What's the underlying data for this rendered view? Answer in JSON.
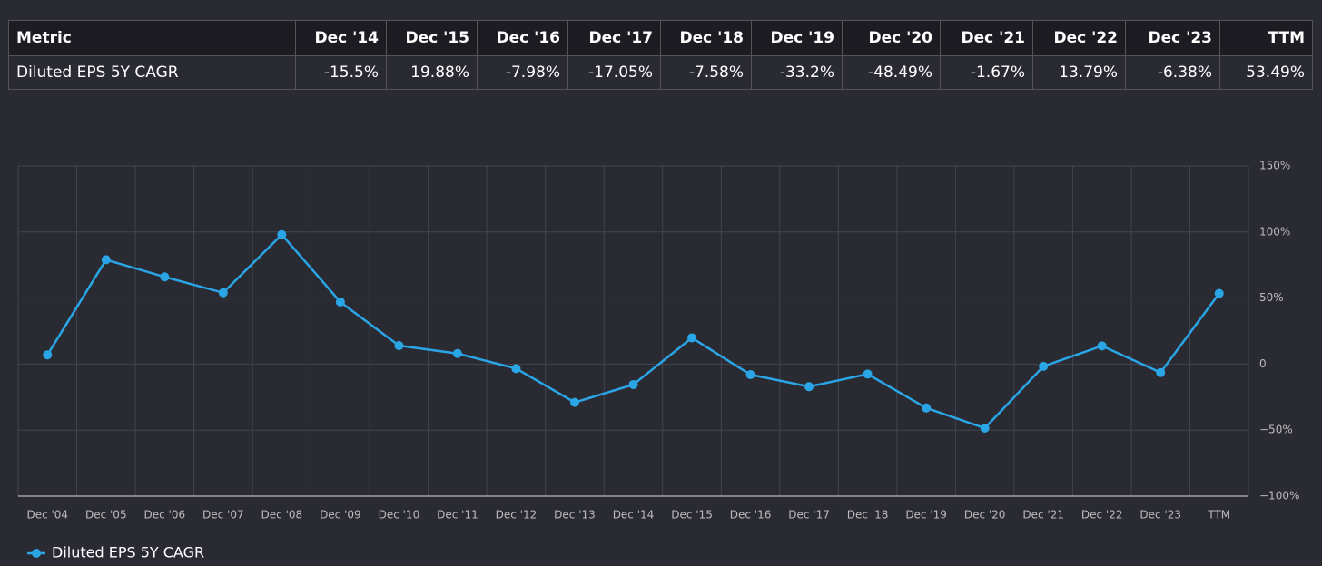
{
  "table": {
    "header": [
      "Metric",
      "Dec '14",
      "Dec '15",
      "Dec '16",
      "Dec '17",
      "Dec '18",
      "Dec '19",
      "Dec '20",
      "Dec '21",
      "Dec '22",
      "Dec '23",
      "TTM"
    ],
    "rows": [
      [
        "Diluted EPS 5Y CAGR",
        "-15.5%",
        "19.88%",
        "-7.98%",
        "-17.05%",
        "-7.58%",
        "-33.2%",
        "-48.49%",
        "-1.67%",
        "13.79%",
        "-6.38%",
        "53.49%"
      ]
    ]
  },
  "chart_data": {
    "type": "line",
    "categories": [
      "Dec '04",
      "Dec '05",
      "Dec '06",
      "Dec '07",
      "Dec '08",
      "Dec '09",
      "Dec '10",
      "Dec '11",
      "Dec '12",
      "Dec '13",
      "Dec '14",
      "Dec '15",
      "Dec '16",
      "Dec '17",
      "Dec '18",
      "Dec '19",
      "Dec '20",
      "Dec '21",
      "Dec '22",
      "Dec '23",
      "TTM"
    ],
    "series": [
      {
        "name": "Diluted EPS 5Y CAGR",
        "color": "#2aa6e6",
        "values": [
          7,
          79,
          66,
          54,
          98,
          47,
          14,
          8,
          -3.4,
          -29,
          -15.5,
          19.88,
          -7.98,
          -17.05,
          -7.58,
          -33.2,
          -48.49,
          -1.67,
          13.79,
          -6.38,
          53.49
        ]
      }
    ],
    "ylim": [
      -100,
      150
    ],
    "yticks": [
      {
        "value": -100,
        "label": "−100%"
      },
      {
        "value": -50,
        "label": "−50%"
      },
      0,
      {
        "value": 50,
        "label": "50%"
      },
      {
        "value": 100,
        "label": "100%"
      },
      {
        "value": 150,
        "label": "150%"
      }
    ],
    "grid": true,
    "legend": "bottom-left"
  }
}
